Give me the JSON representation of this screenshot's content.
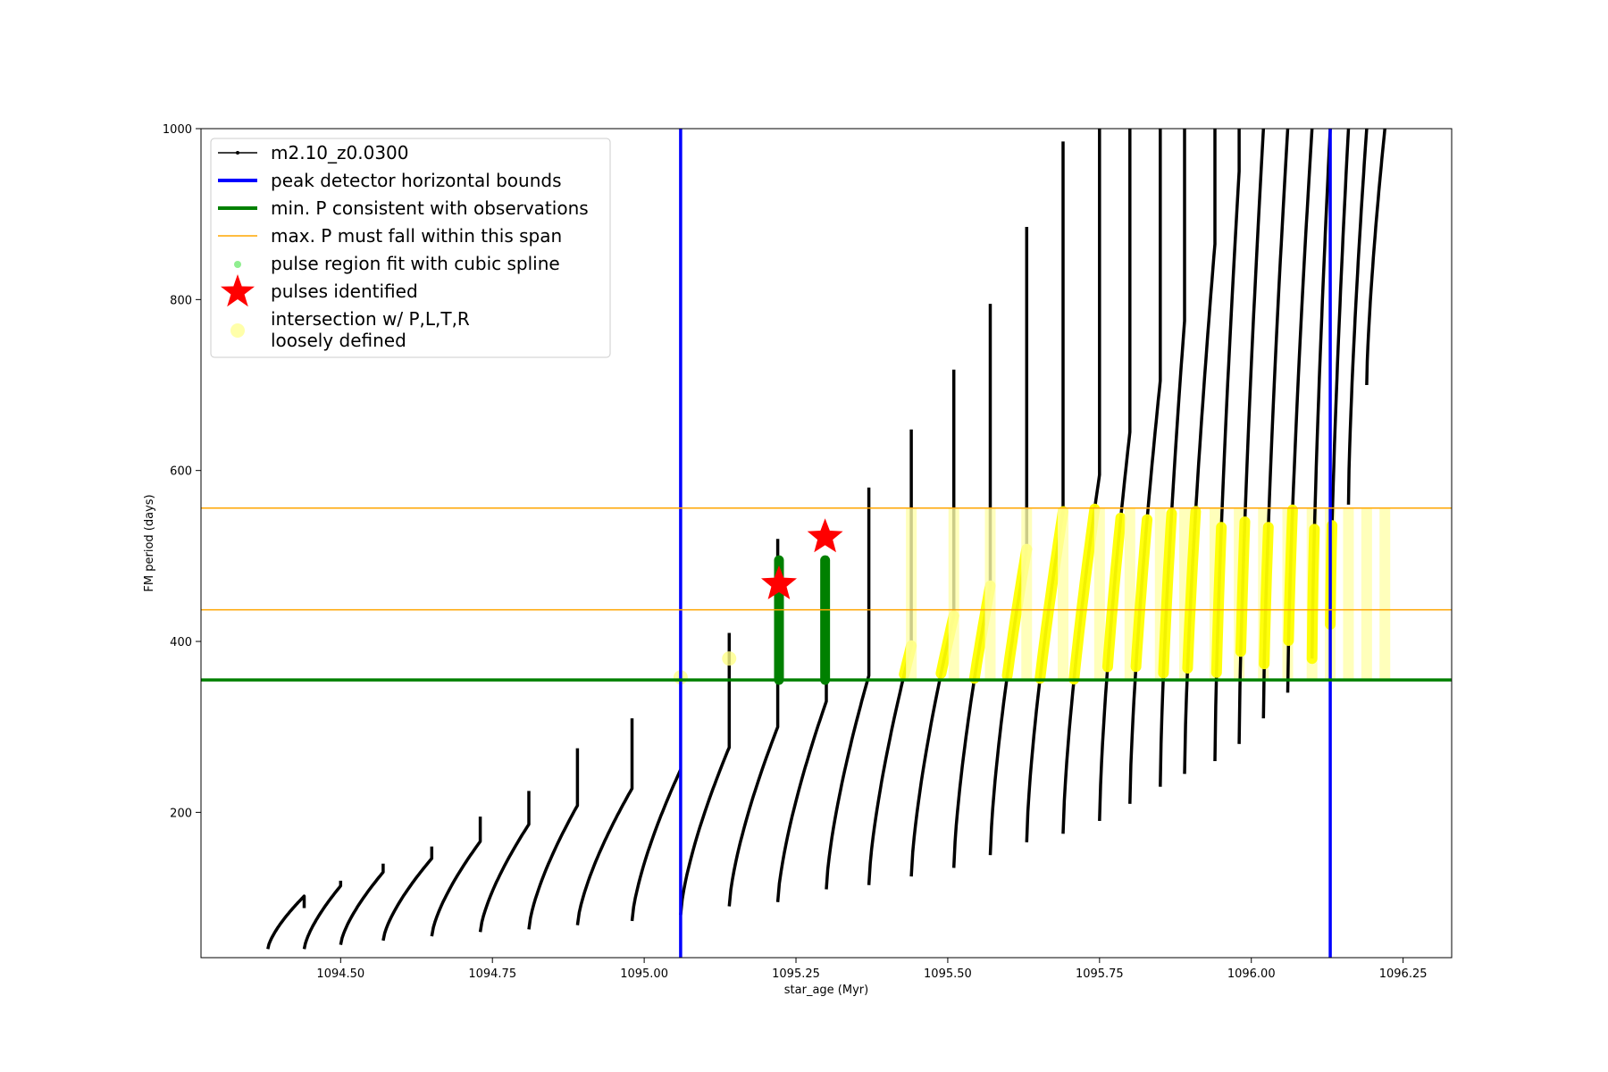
{
  "chart_data": {
    "type": "scatter",
    "xlabel": "star_age (Myr)",
    "ylabel": "FM period (days)",
    "xlim": [
      1094.27,
      1096.33
    ],
    "ylim": [
      30,
      1000
    ],
    "x_ticks": [
      "1094.50",
      "1094.75",
      "1095.00",
      "1095.25",
      "1095.50",
      "1095.75",
      "1096.00",
      "1096.25"
    ],
    "y_ticks": [
      "200",
      "400",
      "600",
      "800",
      "1000"
    ],
    "legend_position": "upper-left",
    "grid": false,
    "legend": [
      {
        "label": "m2.10_z0.0300",
        "style": "line-dot",
        "color": "#000000"
      },
      {
        "label": "peak detector horizontal bounds",
        "style": "thick-line",
        "color": "#0000ff"
      },
      {
        "label": "min. P consistent with observations",
        "style": "thick-line",
        "color": "#008000"
      },
      {
        "label": "max. P must fall within this span",
        "style": "thin-line",
        "color": "#ffa500"
      },
      {
        "label": "pulse region fit with cubic spline",
        "style": "dot",
        "color": "#90ee90"
      },
      {
        "label": "pulses identified",
        "style": "star",
        "color": "#ff0000"
      },
      {
        "label": "intersection w/ P,L,T,R\nloosely defined",
        "style": "big-dot",
        "color": "#ffffaa"
      }
    ],
    "reference_lines": {
      "vertical_blue_x": [
        1095.06,
        1096.13
      ],
      "min_period": 355,
      "max_period_span": [
        437,
        556
      ]
    },
    "series": [
      {
        "name": "m2.10_z0.0300",
        "color": "#000000",
        "pulses": [
          {
            "x0": 1094.38,
            "x1": 1094.44,
            "pmin": 40,
            "pmax": 102,
            "spike": 88
          },
          {
            "x0": 1094.44,
            "x1": 1094.5,
            "pmin": 40,
            "pmax": 114,
            "spike": 120
          },
          {
            "x0": 1094.5,
            "x1": 1094.57,
            "pmin": 45,
            "pmax": 130,
            "spike": 140
          },
          {
            "x0": 1094.57,
            "x1": 1094.65,
            "pmin": 50,
            "pmax": 146,
            "spike": 160
          },
          {
            "x0": 1094.65,
            "x1": 1094.73,
            "pmin": 55,
            "pmax": 166,
            "spike": 195
          },
          {
            "x0": 1094.73,
            "x1": 1094.81,
            "pmin": 60,
            "pmax": 186,
            "spike": 225
          },
          {
            "x0": 1094.81,
            "x1": 1094.89,
            "pmin": 63,
            "pmax": 208,
            "spike": 275
          },
          {
            "x0": 1094.89,
            "x1": 1094.98,
            "pmin": 68,
            "pmax": 228,
            "spike": 310
          },
          {
            "x0": 1094.98,
            "x1": 1095.06,
            "pmin": 73,
            "pmax": 250,
            "spike": 250
          },
          {
            "x0": 1095.06,
            "x1": 1095.14,
            "pmin": 80,
            "pmax": 276,
            "spike": 410
          },
          {
            "x0": 1095.14,
            "x1": 1095.22,
            "pmin": 90,
            "pmax": 300,
            "spike": 520
          },
          {
            "x0": 1095.22,
            "x1": 1095.3,
            "pmin": 95,
            "pmax": 330,
            "spike": 500
          },
          {
            "x0": 1095.3,
            "x1": 1095.37,
            "pmin": 110,
            "pmax": 360,
            "spike": 580
          },
          {
            "x0": 1095.37,
            "x1": 1095.44,
            "pmin": 115,
            "pmax": 395,
            "spike": 648
          },
          {
            "x0": 1095.44,
            "x1": 1095.51,
            "pmin": 125,
            "pmax": 430,
            "spike": 718
          },
          {
            "x0": 1095.51,
            "x1": 1095.57,
            "pmin": 135,
            "pmax": 465,
            "spike": 795
          },
          {
            "x0": 1095.57,
            "x1": 1095.63,
            "pmin": 150,
            "pmax": 508,
            "spike": 885
          },
          {
            "x0": 1095.63,
            "x1": 1095.69,
            "pmin": 165,
            "pmax": 552,
            "spike": 985
          },
          {
            "x0": 1095.69,
            "x1": 1095.75,
            "pmin": 175,
            "pmax": 595,
            "spike": 1000
          },
          {
            "x0": 1095.75,
            "x1": 1095.8,
            "pmin": 190,
            "pmax": 645,
            "spike": 1000
          },
          {
            "x0": 1095.8,
            "x1": 1095.85,
            "pmin": 210,
            "pmax": 705,
            "spike": 1000
          },
          {
            "x0": 1095.85,
            "x1": 1095.89,
            "pmin": 230,
            "pmax": 775,
            "spike": 1000
          },
          {
            "x0": 1095.89,
            "x1": 1095.94,
            "pmin": 245,
            "pmax": 865,
            "spike": 1000
          },
          {
            "x0": 1095.94,
            "x1": 1095.98,
            "pmin": 260,
            "pmax": 950,
            "spike": 1000
          },
          {
            "x0": 1095.98,
            "x1": 1096.02,
            "pmin": 280,
            "pmax": 1000,
            "spike": 1000
          },
          {
            "x0": 1096.02,
            "x1": 1096.06,
            "pmin": 310,
            "pmax": 1000,
            "spike": 1000
          },
          {
            "x0": 1096.06,
            "x1": 1096.1,
            "pmin": 340,
            "pmax": 1000,
            "spike": 1000
          },
          {
            "x0": 1096.1,
            "x1": 1096.13,
            "pmin": 380,
            "pmax": 1000,
            "spike": 1000
          },
          {
            "x0": 1096.13,
            "x1": 1096.16,
            "pmin": 420,
            "pmax": 1000,
            "spike": 1000
          },
          {
            "x0": 1096.16,
            "x1": 1096.19,
            "pmin": 560,
            "pmax": 1000,
            "spike": 1000
          },
          {
            "x0": 1096.19,
            "x1": 1096.22,
            "pmin": 700,
            "pmax": 1000,
            "spike": 1000
          }
        ]
      },
      {
        "name": "pulse region fit with cubic spline",
        "color": "#008000",
        "columns": [
          {
            "x": 1095.222,
            "y0": 355,
            "y1": 495
          },
          {
            "x": 1095.298,
            "y0": 355,
            "y1": 495
          }
        ]
      },
      {
        "name": "pulses identified",
        "color": "#ff0000",
        "points": [
          [
            1095.222,
            467
          ],
          [
            1095.298,
            522
          ]
        ]
      },
      {
        "name": "intersection w/ P,L,T,R loosely defined",
        "color": "#ffff00"
      }
    ]
  }
}
